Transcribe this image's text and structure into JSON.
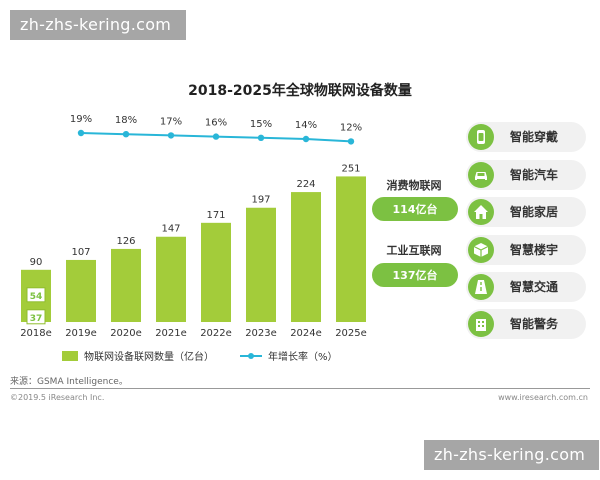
{
  "watermark": "zh-zhs-kering.com",
  "chart_data": {
    "type": "bar",
    "title": "2018-2025年全球物联网设备数量",
    "categories": [
      "2018e",
      "2019e",
      "2020e",
      "2021e",
      "2022e",
      "2023e",
      "2024e",
      "2025e"
    ],
    "series": [
      {
        "name": "物联网设备联网数量（亿台）",
        "values": [
          90,
          107,
          126,
          147,
          171,
          197,
          224,
          251
        ]
      },
      {
        "name": "年增长率（%）",
        "values": [
          null,
          19,
          18,
          17,
          16,
          15,
          14,
          12
        ]
      }
    ],
    "growth_labels": [
      "19%",
      "18%",
      "17%",
      "16%",
      "15%",
      "14%",
      "12%"
    ],
    "bar_2018_split": [
      54,
      37
    ],
    "legend": {
      "bar": "物联网设备联网数量（亿台）",
      "line": "年增长率（%）"
    },
    "colors": {
      "bar": "#a3cc3a",
      "line": "#29b6d8",
      "bar_dark": "#8fbd2e"
    }
  },
  "annotations": {
    "consumer": {
      "label": "消费物联网",
      "value": "114亿台"
    },
    "industrial": {
      "label": "工业互联网",
      "value": "137亿台"
    },
    "tag_color": "#7cc142"
  },
  "icons": [
    {
      "label": "智能穿戴",
      "icon": "watch-icon"
    },
    {
      "label": "智能汽车",
      "icon": "car-icon"
    },
    {
      "label": "智能家居",
      "icon": "house-icon"
    },
    {
      "label": "智慧楼宇",
      "icon": "building-box-icon"
    },
    {
      "label": "智慧交通",
      "icon": "road-icon"
    },
    {
      "label": "智能警务",
      "icon": "police-building-icon"
    }
  ],
  "source": "来源：GSMA Intelligence。",
  "footer": {
    "left": "©2019.5 iResearch Inc.",
    "right": "www.iresearch.com.cn"
  }
}
